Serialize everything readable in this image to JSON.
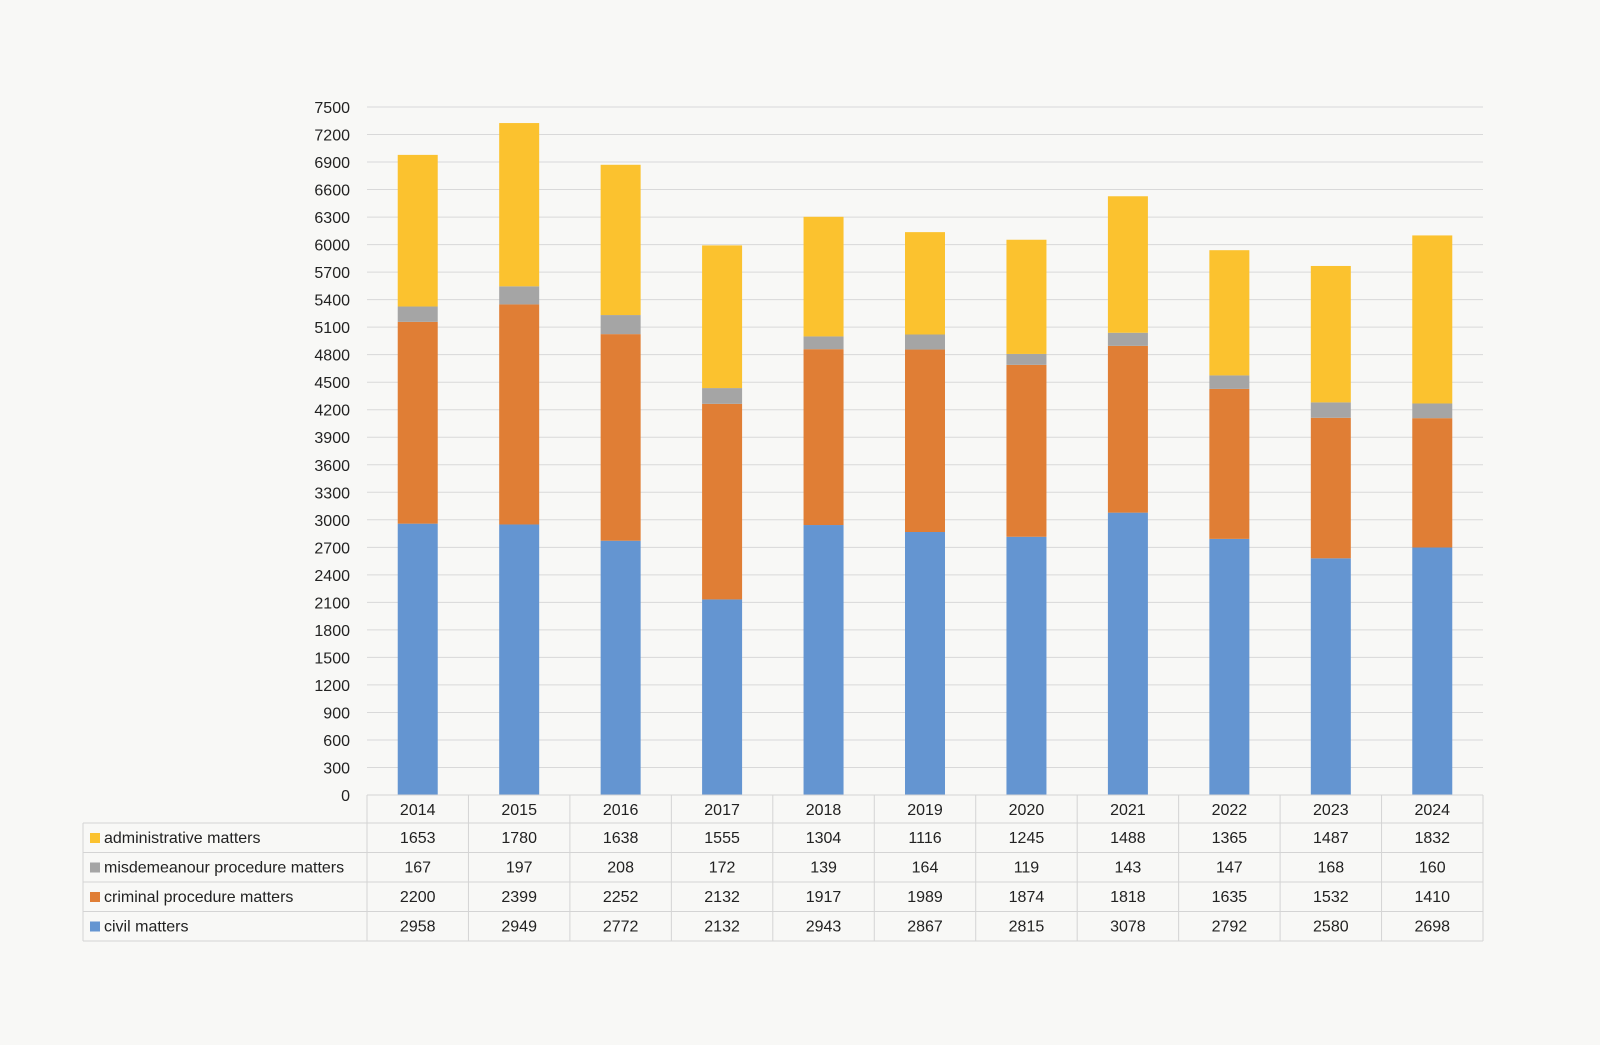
{
  "chart_data": {
    "type": "bar",
    "stacked": true,
    "categories": [
      "2014",
      "2015",
      "2016",
      "2017",
      "2018",
      "2019",
      "2020",
      "2021",
      "2022",
      "2023",
      "2024"
    ],
    "series": [
      {
        "name": "civil matters",
        "color": "#6495d1",
        "values": [
          2958,
          2949,
          2772,
          2132,
          2943,
          2867,
          2815,
          3078,
          2792,
          2580,
          2698
        ]
      },
      {
        "name": "criminal procedure matters",
        "color": "#e07e35",
        "values": [
          2200,
          2399,
          2252,
          2132,
          1917,
          1989,
          1874,
          1818,
          1635,
          1532,
          1410
        ]
      },
      {
        "name": "misdemeanour procedure matters",
        "color": "#a5a5a5",
        "values": [
          167,
          197,
          208,
          172,
          139,
          164,
          119,
          143,
          147,
          168,
          160
        ]
      },
      {
        "name": "administrative matters",
        "color": "#fbc22f",
        "values": [
          1653,
          1780,
          1638,
          1555,
          1304,
          1116,
          1245,
          1488,
          1365,
          1487,
          1832
        ]
      }
    ],
    "table_row_order": [
      "administrative matters",
      "misdemeanour procedure matters",
      "criminal procedure matters",
      "civil matters"
    ],
    "ylim": [
      0,
      7500
    ],
    "ytick_step": 300,
    "yticks": [
      "0",
      "300",
      "600",
      "900",
      "1200",
      "1500",
      "1800",
      "2100",
      "2400",
      "2700",
      "3000",
      "3300",
      "3600",
      "3900",
      "4200",
      "4500",
      "4800",
      "5100",
      "5400",
      "5700",
      "6000",
      "6300",
      "6600",
      "6900",
      "7200",
      "7500"
    ],
    "grid": true,
    "legend": "data-table-below",
    "title": "",
    "xlabel": "",
    "ylabel": ""
  }
}
